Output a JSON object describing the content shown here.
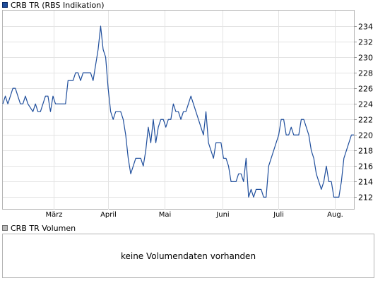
{
  "legend": {
    "main_label": "CRB TR (RBS Indikation)",
    "main_color": "#1f4e9c",
    "volume_label": "CRB TR Volumen",
    "volume_color": "#b8b8b8"
  },
  "volume_panel": {
    "message": "keine Volumendaten vorhanden"
  },
  "chart_data": {
    "type": "line",
    "title": "CRB TR (RBS Indikation)",
    "xlabel": "",
    "ylabel": "",
    "x_tick_labels": [
      "März",
      "April",
      "Mai",
      "Juni",
      "Juli",
      "Aug."
    ],
    "y_ticks": [
      212,
      214,
      216,
      218,
      220,
      222,
      224,
      226,
      228,
      230,
      232,
      234
    ],
    "ylim": [
      210.4,
      236.0
    ],
    "grid": true,
    "line_color": "#1f4e9c",
    "series": [
      {
        "name": "CRB TR (RBS Indikation)",
        "values": [
          224,
          225,
          224,
          225,
          226,
          226,
          225,
          224,
          224,
          225,
          224,
          223.5,
          223,
          224,
          223,
          223,
          224,
          225,
          225,
          223,
          225,
          224,
          224,
          224,
          224,
          224,
          227,
          227,
          227,
          228,
          228,
          227,
          228,
          228,
          228,
          228,
          227,
          229,
          231,
          234,
          231,
          230,
          226,
          223,
          222,
          223,
          223,
          223,
          222,
          220,
          217,
          215,
          216,
          217,
          217,
          217,
          216,
          218,
          221,
          219,
          222,
          219,
          221,
          222,
          222,
          221,
          222,
          222,
          224,
          223,
          223,
          222,
          223,
          223,
          224,
          225,
          224,
          223,
          222,
          221,
          220,
          223,
          219,
          218,
          217,
          219,
          219,
          219,
          217,
          217,
          216,
          214,
          214,
          214,
          215,
          215,
          214,
          217,
          212,
          213,
          212,
          213,
          213,
          213,
          212,
          212,
          216,
          217,
          218,
          219,
          220,
          222,
          222,
          220,
          220,
          221,
          220,
          220,
          220,
          222,
          222,
          221,
          220,
          218,
          217,
          215,
          214,
          213,
          214,
          216,
          214,
          214,
          212,
          212,
          212,
          214,
          217,
          218,
          219,
          220,
          220
        ]
      }
    ]
  }
}
